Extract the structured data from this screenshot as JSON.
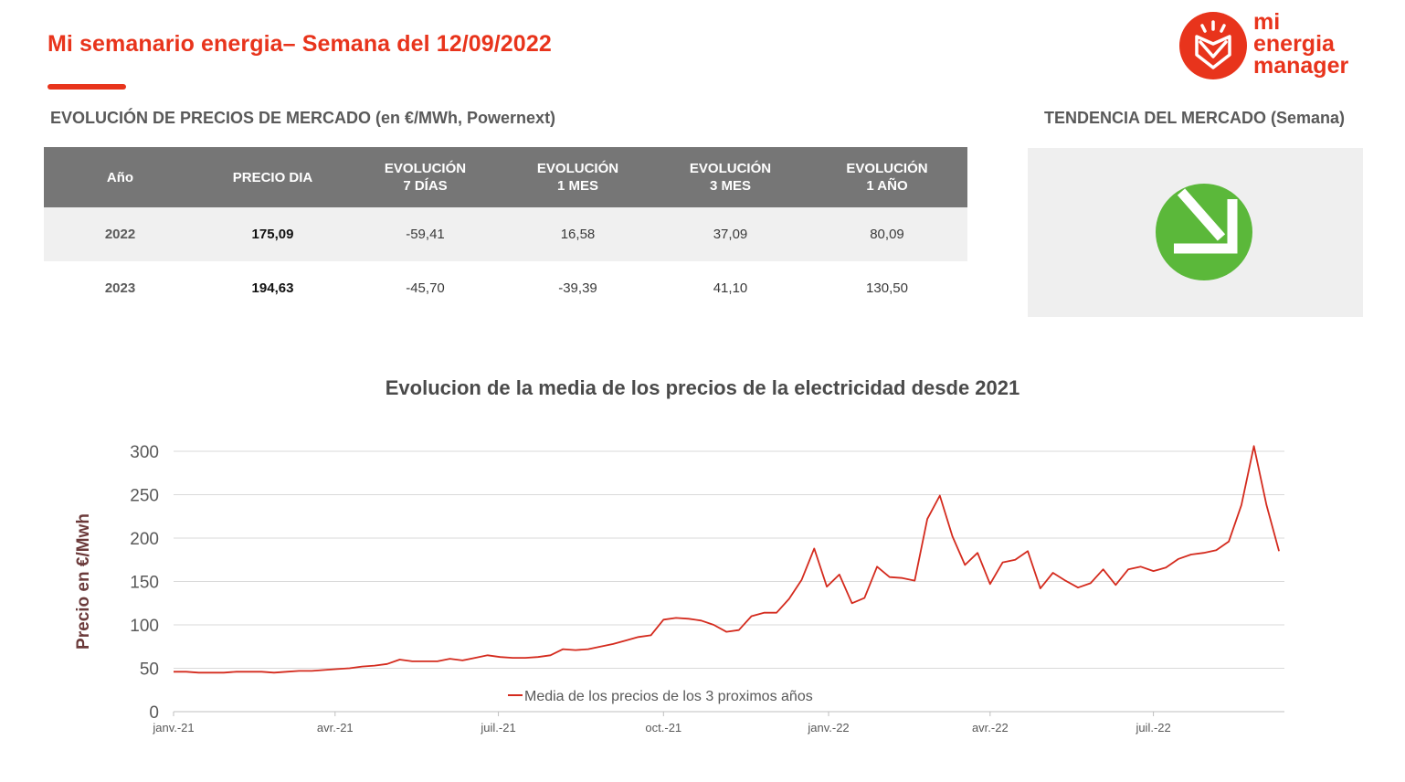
{
  "header": {
    "title": "Mi semanario energia– Semana del 12/09/2022",
    "logo_lines": [
      "mi",
      "energia",
      "manager"
    ]
  },
  "table_section": {
    "heading": "EVOLUCIÓN DE PRECIOS DE MERCADO (en €/MWh, Powernext)",
    "columns": [
      [
        "Año"
      ],
      [
        "PRECIO DIA"
      ],
      [
        "EVOLUCIÓN",
        "7 DÍAS"
      ],
      [
        "EVOLUCIÓN",
        "1 MES"
      ],
      [
        "EVOLUCIÓN",
        "3 MES"
      ],
      [
        "EVOLUCIÓN",
        "1 AÑO"
      ]
    ],
    "rows": [
      [
        "2022",
        "175,09",
        "-59,41",
        "16,58",
        "37,09",
        "80,09"
      ],
      [
        "2023",
        "194,63",
        "-45,70",
        "-39,39",
        "41,10",
        "130,50"
      ]
    ]
  },
  "trend_section": {
    "heading": "TENDENCIA DEL MERCADO (Semana)",
    "icon": "arrow-down-right-icon",
    "color": "#5bb83a"
  },
  "colors": {
    "accent": "#e8341c",
    "table_header": "#767676",
    "line": "#d42b1e"
  },
  "chart_data": {
    "type": "line",
    "title": "Evolucion de la media de los precios de la electricidad desde 2021",
    "ylabel": "Precio en €/Mwh",
    "xlabel": "",
    "ylim": [
      0,
      300
    ],
    "yticks": [
      0,
      50,
      100,
      150,
      200,
      250,
      300
    ],
    "xlim": [
      "2021-01-01",
      "2022-09-12"
    ],
    "xticks": [
      {
        "label": "janv.-21",
        "date": "2021-01-01"
      },
      {
        "label": "avr.-21",
        "date": "2021-04-01"
      },
      {
        "label": "juil.-21",
        "date": "2021-07-01"
      },
      {
        "label": "oct.-21",
        "date": "2021-10-01"
      },
      {
        "label": "janv.-22",
        "date": "2022-01-01"
      },
      {
        "label": "avr.-22",
        "date": "2022-04-01"
      },
      {
        "label": "juil.-22",
        "date": "2022-07-01"
      }
    ],
    "grid": true,
    "legend": "bottom-center",
    "series": [
      {
        "name": "Media de los precios de los 3 proximos años",
        "x": [
          "2021-01-01",
          "2021-01-08",
          "2021-01-15",
          "2021-01-22",
          "2021-01-29",
          "2021-02-05",
          "2021-02-12",
          "2021-02-19",
          "2021-02-26",
          "2021-03-05",
          "2021-03-12",
          "2021-03-19",
          "2021-03-26",
          "2021-04-02",
          "2021-04-09",
          "2021-04-16",
          "2021-04-23",
          "2021-04-30",
          "2021-05-07",
          "2021-05-14",
          "2021-05-21",
          "2021-05-28",
          "2021-06-04",
          "2021-06-11",
          "2021-06-18",
          "2021-06-25",
          "2021-07-02",
          "2021-07-09",
          "2021-07-16",
          "2021-07-23",
          "2021-07-30",
          "2021-08-06",
          "2021-08-13",
          "2021-08-20",
          "2021-08-27",
          "2021-09-03",
          "2021-09-10",
          "2021-09-17",
          "2021-09-24",
          "2021-10-01",
          "2021-10-08",
          "2021-10-15",
          "2021-10-22",
          "2021-10-29",
          "2021-11-05",
          "2021-11-12",
          "2021-11-19",
          "2021-11-26",
          "2021-12-03",
          "2021-12-10",
          "2021-12-17",
          "2021-12-24",
          "2021-12-31",
          "2022-01-07",
          "2022-01-14",
          "2022-01-21",
          "2022-01-28",
          "2022-02-04",
          "2022-02-11",
          "2022-02-18",
          "2022-02-25",
          "2022-03-04",
          "2022-03-11",
          "2022-03-18",
          "2022-03-25",
          "2022-04-01",
          "2022-04-08",
          "2022-04-15",
          "2022-04-22",
          "2022-04-29",
          "2022-05-06",
          "2022-05-13",
          "2022-05-20",
          "2022-05-27",
          "2022-06-03",
          "2022-06-10",
          "2022-06-17",
          "2022-06-24",
          "2022-07-01",
          "2022-07-08",
          "2022-07-15",
          "2022-07-22",
          "2022-07-29",
          "2022-08-05",
          "2022-08-12",
          "2022-08-19",
          "2022-08-26",
          "2022-09-02",
          "2022-09-09"
        ],
        "values": [
          46,
          46,
          45,
          45,
          45,
          46,
          46,
          46,
          45,
          46,
          47,
          47,
          48,
          49,
          50,
          52,
          53,
          55,
          60,
          58,
          58,
          58,
          61,
          59,
          62,
          65,
          63,
          62,
          62,
          63,
          65,
          72,
          71,
          72,
          75,
          78,
          82,
          86,
          88,
          106,
          108,
          107,
          105,
          100,
          92,
          94,
          110,
          114,
          114,
          130,
          152,
          188,
          144,
          158,
          125,
          131,
          167,
          155,
          154,
          151,
          222,
          249,
          202,
          169,
          183,
          147,
          172,
          175,
          185,
          142,
          160,
          151,
          143,
          148,
          164,
          146,
          164,
          167,
          162,
          166,
          176,
          181,
          183,
          186,
          196,
          238,
          306,
          238,
          185
        ]
      }
    ]
  }
}
